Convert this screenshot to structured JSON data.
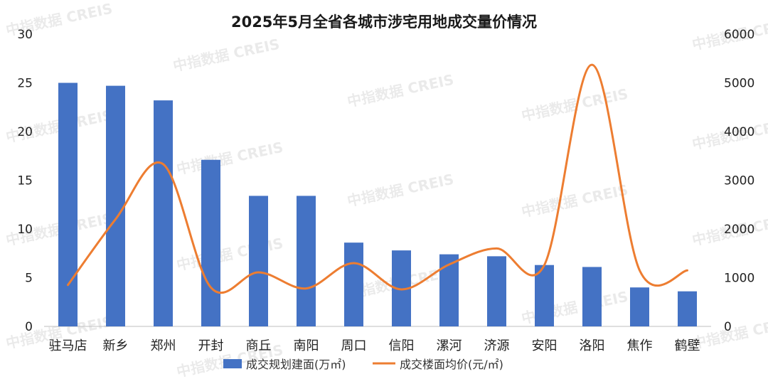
{
  "watermark": "中指数据 CREIS",
  "chart_data": {
    "type": "bar",
    "title": "2025年5月全省各城市涉宅用地成交量价情况",
    "categories": [
      "驻马店",
      "新乡",
      "郑州",
      "开封",
      "商丘",
      "南阳",
      "周口",
      "信阳",
      "漯河",
      "济源",
      "安阳",
      "洛阳",
      "焦作",
      "鹤壁"
    ],
    "series": [
      {
        "name": "成交规划建面(万㎡)",
        "type": "bar",
        "axis": "left",
        "color": "#4472C4",
        "values": [
          25.0,
          24.7,
          23.2,
          17.1,
          13.4,
          13.4,
          8.6,
          7.8,
          7.4,
          7.2,
          6.3,
          6.1,
          4.0,
          3.6
        ]
      },
      {
        "name": "成交楼面均价(元/㎡)",
        "type": "line",
        "smooth": true,
        "axis": "right",
        "color": "#ED7D31",
        "values": [
          850,
          2200,
          3330,
          800,
          1110,
          780,
          1300,
          760,
          1270,
          1600,
          1260,
          5370,
          1150,
          1150
        ]
      }
    ],
    "y_left": {
      "min": 0,
      "max": 30,
      "ticks": [
        0,
        5,
        10,
        15,
        20,
        25,
        30
      ]
    },
    "y_right": {
      "min": 0,
      "max": 6000,
      "ticks": [
        0,
        1000,
        2000,
        3000,
        4000,
        5000,
        6000
      ]
    },
    "grid": false,
    "legend": "bottom"
  }
}
